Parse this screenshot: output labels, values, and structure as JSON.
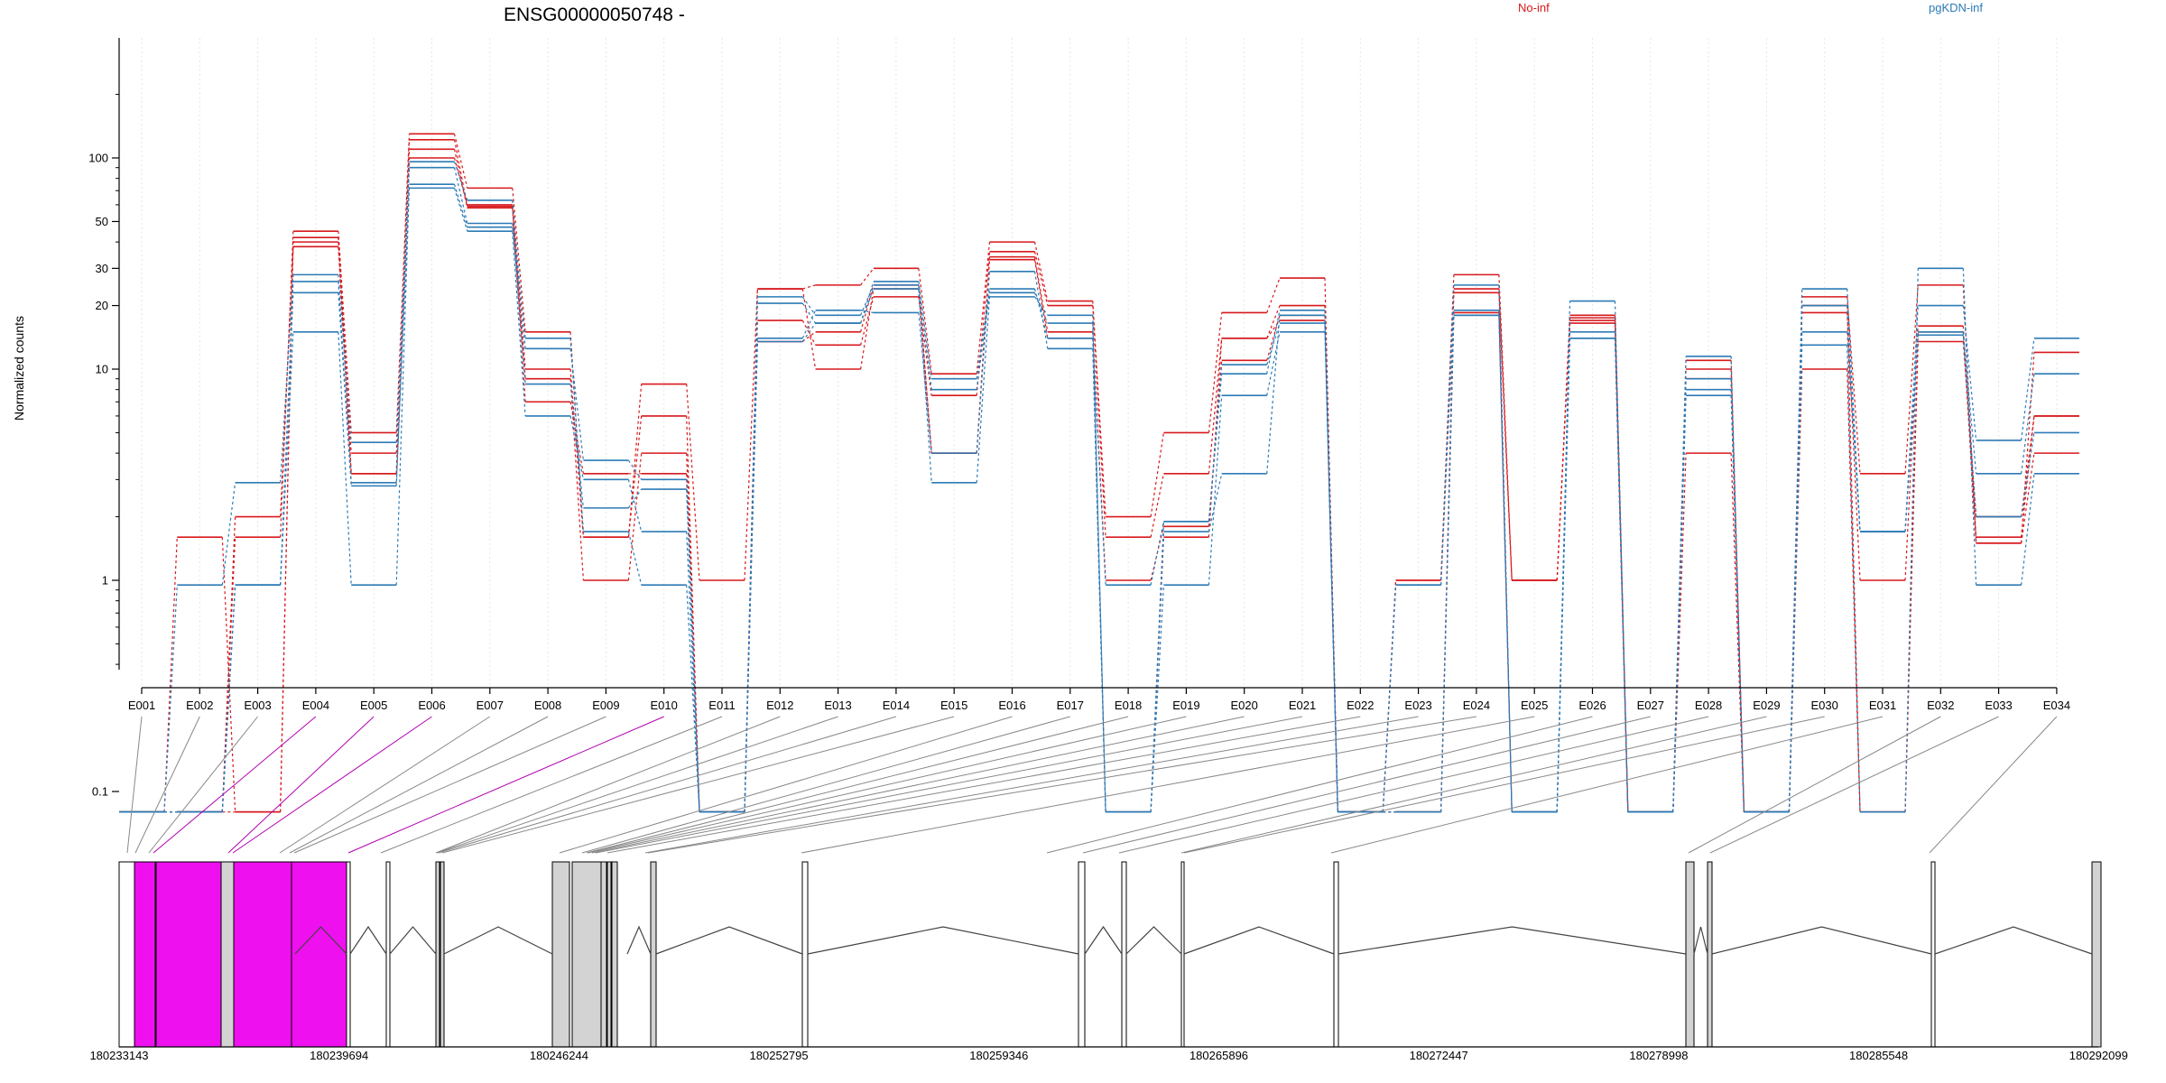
{
  "chart_data": {
    "type": "line",
    "title": "ENSG00000050748 -",
    "ylabel": "Normalized counts",
    "xlabel": "",
    "y_scale": "log",
    "y_ticks": [
      0.1,
      1,
      10,
      20,
      30,
      50,
      100
    ],
    "y_tick_labels": [
      "0.1",
      "1",
      "10",
      "20",
      "30",
      "50",
      "100"
    ],
    "categories": [
      "E001",
      "E002",
      "E003",
      "E004",
      "E005",
      "E006",
      "E007",
      "E008",
      "E009",
      "E010",
      "E011",
      "E012",
      "E013",
      "E014",
      "E015",
      "E016",
      "E017",
      "E018",
      "E019",
      "E020",
      "E021",
      "E022",
      "E023",
      "E024",
      "E025",
      "E026",
      "E027",
      "E028",
      "E029",
      "E030",
      "E031",
      "E032",
      "E033",
      "E034"
    ],
    "legend": [
      {
        "label": "No-inf",
        "color": "#d7191c"
      },
      {
        "label": "pgKDN-inf",
        "color": "#2c7bb6"
      }
    ],
    "series": [
      {
        "group": "No-inf",
        "color": "#d7191c",
        "values": [
          0.08,
          0.08,
          1.6,
          45,
          5,
          130,
          72,
          15,
          1.6,
          8.5,
          1,
          24,
          25,
          30,
          9.5,
          40,
          21,
          2,
          5,
          18.5,
          27,
          0.08,
          1,
          28,
          1,
          17.5,
          0.08,
          11,
          0.08,
          22,
          3.2,
          25,
          1.5,
          12
        ]
      },
      {
        "group": "No-inf",
        "color": "#d7191c",
        "values": [
          0.08,
          1.6,
          0.08,
          40,
          4,
          122,
          59,
          10,
          1.6,
          6,
          0.08,
          17,
          13,
          22,
          7.5,
          36,
          20,
          1.6,
          3.2,
          14,
          20,
          0.08,
          1,
          24,
          1,
          16.5,
          0.08,
          4,
          0.08,
          18.5,
          1,
          16,
          1.6,
          6
        ]
      },
      {
        "group": "No-inf",
        "color": "#d7191c",
        "values": [
          0.08,
          0.08,
          2,
          38,
          3.2,
          110,
          58,
          9,
          1,
          4,
          0.08,
          13.5,
          15,
          25,
          4,
          34,
          15,
          1,
          1.8,
          11,
          18,
          0.08,
          0.08,
          23,
          1,
          18,
          0.08,
          9,
          0.08,
          10,
          0.08,
          15,
          1.5,
          4
        ]
      },
      {
        "group": "No-inf",
        "color": "#d7191c",
        "values": [
          0.08,
          0.08,
          0.08,
          42,
          3.2,
          100,
          60,
          7,
          3.2,
          3.2,
          0.08,
          24,
          10,
          24,
          4,
          33,
          14,
          0.08,
          1.6,
          14,
          17,
          0.08,
          0.08,
          18.5,
          0.08,
          17,
          0.08,
          10,
          0.08,
          20,
          0.08,
          13.5,
          2,
          6
        ]
      },
      {
        "group": "pgKDN-inf",
        "color": "#2c7bb6",
        "values": [
          0.08,
          0.95,
          2.9,
          28,
          4.5,
          96,
          63,
          12.5,
          3.7,
          3,
          0.08,
          22,
          18,
          25,
          8,
          23,
          16.5,
          0.08,
          1.9,
          9.5,
          19,
          0.08,
          0.95,
          25,
          0.08,
          21,
          0.08,
          11.5,
          0.08,
          24,
          1.7,
          20,
          4.6,
          14
        ]
      },
      {
        "group": "pgKDN-inf",
        "color": "#2c7bb6",
        "values": [
          0.08,
          0.08,
          0.95,
          23,
          2.8,
          90,
          49,
          8.5,
          2.2,
          2.7,
          0.08,
          20.5,
          16.5,
          26,
          9,
          24,
          14,
          0.95,
          1.9,
          10.5,
          16.5,
          0.08,
          0.95,
          19,
          0.08,
          14,
          0.08,
          9,
          0.08,
          15,
          1.7,
          15,
          3.2,
          9.5
        ]
      },
      {
        "group": "pgKDN-inf",
        "color": "#2c7bb6",
        "values": [
          0.08,
          0.08,
          0.95,
          15,
          0.95,
          75,
          47,
          14,
          1.7,
          0.95,
          0.08,
          14,
          19,
          18.5,
          4,
          29,
          12.5,
          0.08,
          0.95,
          7.5,
          15,
          0.08,
          0.08,
          18,
          0.08,
          15,
          0.08,
          7.5,
          0.08,
          13,
          0.08,
          30,
          0.95,
          3.2
        ]
      },
      {
        "group": "pgKDN-inf",
        "color": "#2c7bb6",
        "values": [
          0.08,
          0.08,
          0.95,
          26,
          2.9,
          72,
          45,
          6,
          3,
          1.7,
          0.08,
          13.5,
          16.5,
          24,
          2.9,
          22,
          18,
          0.08,
          1.7,
          3.2,
          18,
          0.08,
          0.08,
          18,
          0.08,
          14,
          0.08,
          8,
          0.08,
          20,
          1.7,
          14.5,
          2,
          5
        ]
      }
    ],
    "gene_model": {
      "coordinate_labels": [
        "180233143",
        "180239694",
        "180246244",
        "180252795",
        "180259346",
        "180265896",
        "180272447",
        "180278998",
        "180285548",
        "180292099"
      ],
      "highlighted_exons": [
        "E002",
        "E003",
        "E004",
        "E005",
        "E006"
      ],
      "highlight_color": "#ee10ee",
      "exon_fill": "#d3d3d3"
    }
  }
}
